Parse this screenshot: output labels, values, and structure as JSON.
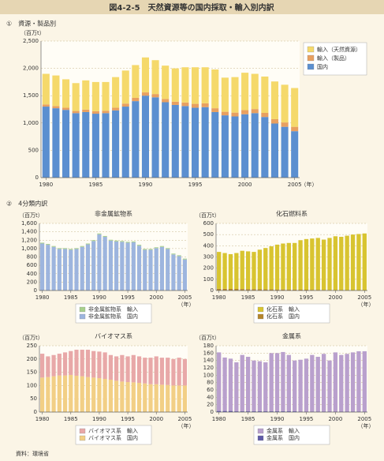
{
  "title": "図4-2-5　天然資源等の国内採取・輸入別内訳",
  "sections": [
    "①　資源・製品別",
    "②　4分類内訳"
  ],
  "source": "資料：環境省",
  "chart_data": [
    {
      "type": "bar",
      "stacked": true,
      "y_unit": "（百万t）",
      "x_unit": "（年）",
      "legend": "upper right",
      "grid": true,
      "x": [
        1980,
        1981,
        1982,
        1983,
        1984,
        1985,
        1986,
        1987,
        1988,
        1989,
        1990,
        1991,
        1992,
        1993,
        1994,
        1995,
        1996,
        1997,
        1998,
        1999,
        2000,
        2001,
        2002,
        2003,
        2004,
        2005
      ],
      "xlim": [
        1980,
        2005
      ],
      "xticks": [
        1980,
        1985,
        1990,
        1995,
        2000,
        2005
      ],
      "ylim": [
        0,
        2500
      ],
      "yticks": [
        0,
        500,
        {
          "value": 1000,
          "label": "1,000"
        },
        {
          "value": 1500,
          "label": "1,500"
        },
        {
          "value": 2000,
          "label": "2,000"
        },
        {
          "value": 2500,
          "label": "2,500"
        }
      ],
      "series": [
        {
          "name": "輸入（天然資源）",
          "color": "#f5d96b",
          "values": [
            560,
            560,
            520,
            510,
            535,
            535,
            525,
            560,
            605,
            600,
            640,
            620,
            610,
            610,
            645,
            670,
            660,
            710,
            625,
            650,
            685,
            645,
            665,
            690,
            690,
            710
          ]
        },
        {
          "name": "輸入（製品）",
          "color": "#e8a060",
          "values": [
            40,
            40,
            40,
            40,
            45,
            45,
            45,
            50,
            55,
            60,
            60,
            60,
            60,
            60,
            65,
            70,
            70,
            70,
            65,
            70,
            75,
            75,
            75,
            80,
            80,
            80
          ]
        },
        {
          "name": "国内",
          "color": "#5b8fd0",
          "values": [
            1300,
            1270,
            1240,
            1180,
            1200,
            1170,
            1180,
            1230,
            1300,
            1400,
            1500,
            1470,
            1380,
            1330,
            1310,
            1280,
            1290,
            1200,
            1140,
            1120,
            1160,
            1180,
            1110,
            990,
            930,
            850
          ]
        }
      ]
    },
    {
      "type": "bar",
      "stacked": true,
      "title": "非金属鉱物系",
      "y_unit": "（百万t）",
      "x_unit": "（年）",
      "legend": "bottom",
      "grid": true,
      "x": [
        1980,
        1981,
        1982,
        1983,
        1984,
        1985,
        1986,
        1987,
        1988,
        1989,
        1990,
        1991,
        1992,
        1993,
        1994,
        1995,
        1996,
        1997,
        1998,
        1999,
        2000,
        2001,
        2002,
        2003,
        2004,
        2005
      ],
      "xlim": [
        1980,
        2005
      ],
      "xticks": [
        1980,
        1985,
        1990,
        1995,
        2000,
        2005
      ],
      "ylim": [
        0,
        1600
      ],
      "yticks": [
        0,
        200,
        400,
        600,
        800,
        {
          "value": 1000,
          "label": "1,000"
        },
        {
          "value": 1200,
          "label": "1,200"
        },
        {
          "value": 1400,
          "label": "1,400"
        },
        {
          "value": 1600,
          "label": "1,600"
        }
      ],
      "series": [
        {
          "name": "非金属鉱物系　輸入",
          "color": "#a8d08d",
          "values": [
            20,
            20,
            20,
            20,
            20,
            20,
            20,
            20,
            20,
            20,
            20,
            20,
            20,
            20,
            20,
            20,
            20,
            20,
            20,
            20,
            20,
            20,
            20,
            20,
            20,
            20
          ]
        },
        {
          "name": "非金属鉱物系　国内",
          "color": "#9db5de",
          "values": [
            1120,
            1090,
            1040,
            990,
            990,
            970,
            990,
            1040,
            1100,
            1180,
            1340,
            1280,
            1190,
            1170,
            1160,
            1140,
            1150,
            1070,
            970,
            970,
            1010,
            1040,
            990,
            860,
            820,
            740
          ]
        }
      ]
    },
    {
      "type": "bar",
      "stacked": true,
      "title": "化石燃料系",
      "y_unit": "（百万t）",
      "x_unit": "（年）",
      "legend": "bottom",
      "grid": true,
      "x": [
        1980,
        1981,
        1982,
        1983,
        1984,
        1985,
        1986,
        1987,
        1988,
        1989,
        1990,
        1991,
        1992,
        1993,
        1994,
        1995,
        1996,
        1997,
        1998,
        1999,
        2000,
        2001,
        2002,
        2003,
        2004,
        2005
      ],
      "xlim": [
        1980,
        2005
      ],
      "xticks": [
        1980,
        1985,
        1990,
        1995,
        2000,
        2005
      ],
      "ylim": [
        0,
        600
      ],
      "yticks": [
        0,
        100,
        200,
        300,
        400,
        500,
        600
      ],
      "series": [
        {
          "name": "化石系　輸入",
          "color": "#d8c430",
          "values": [
            330,
            320,
            311,
            321,
            342,
            338,
            333,
            354,
            370,
            385,
            401,
            411,
            417,
            417,
            443,
            453,
            459,
            464,
            450,
            465,
            481,
            476,
            487,
            497,
            502,
            507
          ]
        },
        {
          "name": "化石系　国内",
          "color": "#b5852a",
          "values": [
            15,
            15,
            14,
            14,
            13,
            12,
            12,
            11,
            10,
            10,
            9,
            9,
            8,
            8,
            7,
            7,
            6,
            6,
            5,
            5,
            4,
            4,
            3,
            3,
            3,
            3
          ]
        }
      ]
    },
    {
      "type": "bar",
      "stacked": true,
      "title": "バイオマス系",
      "y_unit": "（百万t）",
      "x_unit": "（年）",
      "legend": "bottom",
      "grid": true,
      "x": [
        1980,
        1981,
        1982,
        1983,
        1984,
        1985,
        1986,
        1987,
        1988,
        1989,
        1990,
        1991,
        1992,
        1993,
        1994,
        1995,
        1996,
        1997,
        1998,
        1999,
        2000,
        2001,
        2002,
        2003,
        2004,
        2005
      ],
      "xlim": [
        1980,
        2005
      ],
      "xticks": [
        1980,
        1985,
        1990,
        1995,
        2000,
        2005
      ],
      "ylim": [
        0,
        250
      ],
      "yticks": [
        0,
        50,
        100,
        150,
        200,
        250
      ],
      "series": [
        {
          "name": "バイオマス系　輸入",
          "color": "#e8a8a8",
          "values": [
            90,
            78,
            80,
            82,
            87,
            90,
            98,
            100,
            103,
            100,
            100,
            100,
            93,
            92,
            100,
            97,
            103,
            100,
            97,
            100,
            105,
            102,
            103,
            100,
            105,
            100
          ]
        },
        {
          "name": "バイオマス系　国内",
          "color": "#f2cf85",
          "values": [
            130,
            132,
            135,
            138,
            138,
            140,
            137,
            135,
            132,
            130,
            128,
            125,
            122,
            118,
            115,
            113,
            112,
            110,
            108,
            105,
            105,
            103,
            102,
            100,
            100,
            100
          ]
        }
      ]
    },
    {
      "type": "bar",
      "stacked": true,
      "title": "金属系",
      "y_unit": "（百万t）",
      "x_unit": "（年）",
      "legend": "bottom",
      "grid": true,
      "x": [
        1980,
        1981,
        1982,
        1983,
        1984,
        1985,
        1986,
        1987,
        1988,
        1989,
        1990,
        1991,
        1992,
        1993,
        1994,
        1995,
        1996,
        1997,
        1998,
        1999,
        2000,
        2001,
        2002,
        2003,
        2004,
        2005
      ],
      "xlim": [
        1980,
        2005
      ],
      "xticks": [
        1980,
        1985,
        1990,
        1995,
        2000,
        2005
      ],
      "ylim": [
        0,
        180
      ],
      "yticks": [
        0,
        20,
        40,
        60,
        80,
        100,
        120,
        140,
        160,
        180
      ],
      "series": [
        {
          "name": "金属系　輸入",
          "color": "#b9a0cd",
          "values": [
            159,
            145,
            142,
            133,
            153,
            148,
            138,
            136,
            133,
            158,
            158,
            161,
            153,
            138,
            141,
            144,
            154,
            149,
            157,
            139,
            161,
            154,
            157,
            161,
            164,
            164
          ]
        },
        {
          "name": "金属系　国内",
          "color": "#5f5aa8",
          "values": [
            3,
            3,
            3,
            2,
            2,
            2,
            2,
            2,
            2,
            2,
            2,
            2,
            2,
            2,
            1,
            1,
            1,
            1,
            1,
            1,
            1,
            1,
            1,
            1,
            1,
            1
          ]
        }
      ]
    }
  ]
}
